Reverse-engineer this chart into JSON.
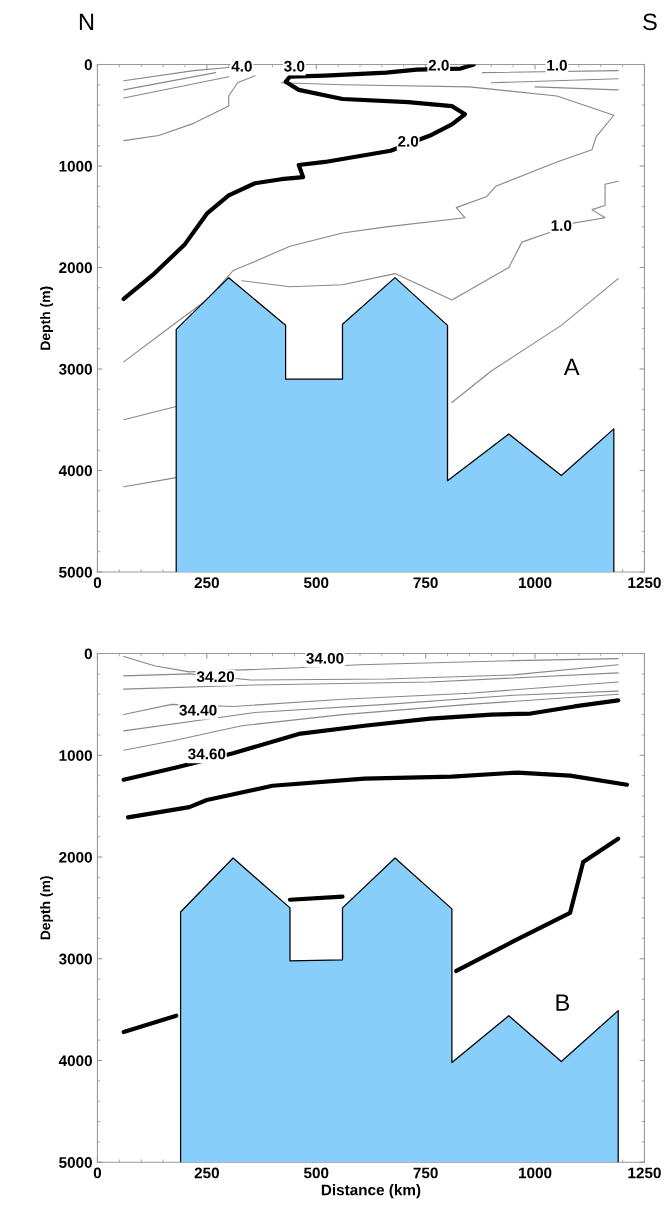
{
  "chart_data": [
    {
      "type": "line",
      "ylabel": "Depth (m)",
      "xlim": [
        0,
        1250
      ],
      "ylim": [
        5000,
        0
      ],
      "xticks": [
        0,
        250,
        500,
        750,
        1000,
        1250
      ],
      "yticks": [
        0,
        1000,
        2000,
        3000,
        4000,
        5000
      ],
      "grid": false,
      "series": [
        {
          "type": "area",
          "color": "#87cefa",
          "x": [
            180,
            180,
            300,
            430,
            430,
            560,
            560,
            680,
            800,
            800,
            940,
            1060,
            1180,
            1180
          ],
          "values": [
            5000,
            2610,
            2100,
            2570,
            3100,
            3100,
            2560,
            2100,
            2570,
            4100,
            3640,
            4050,
            3590,
            5000
          ]
        },
        {
          "color": "#000000",
          "x": [
            60,
            130,
            200,
            250,
            300,
            360,
            420,
            470,
            460,
            520,
            670,
            760,
            810,
            840,
            810,
            710,
            560,
            460,
            430,
            440,
            520,
            660,
            730,
            830,
            860
          ],
          "values": [
            2310,
            2060,
            1770,
            1470,
            1290,
            1170,
            1130,
            1110,
            990,
            960,
            850,
            700,
            590,
            490,
            410,
            370,
            340,
            250,
            170,
            120,
            110,
            80,
            50,
            40,
            0
          ]
        },
        {
          "color": "#888888",
          "x": [
            60,
            140,
            220,
            300,
            300,
            320,
            360
          ],
          "values": [
            750,
            700,
            580,
            410,
            310,
            180,
            110
          ]
        },
        {
          "color": "#888888",
          "x": [
            420,
            560,
            850,
            1050,
            1180,
            1140,
            1130,
            1050,
            910,
            890,
            820,
            840,
            660,
            560,
            440,
            360,
            310,
            250,
            190,
            60
          ],
          "values": [
            180,
            200,
            220,
            310,
            500,
            710,
            840,
            960,
            1200,
            1300,
            1410,
            1510,
            1600,
            1660,
            1790,
            1940,
            2030,
            2320,
            2510,
            2930
          ]
        },
        {
          "color": "#888888",
          "x": [
            330,
            440,
            560,
            680,
            810,
            940,
            970,
            1030,
            1090,
            1160,
            1130,
            1160,
            1160,
            1190
          ],
          "values": [
            2130,
            2190,
            2170,
            2060,
            2320,
            2000,
            1750,
            1660,
            1560,
            1510,
            1430,
            1390,
            1180,
            1150
          ]
        },
        {
          "color": "#888888",
          "x": [
            810,
            900,
            1060,
            1190
          ],
          "values": [
            3330,
            3020,
            2570,
            2110
          ]
        },
        {
          "color": "#888888",
          "x": [
            60,
            180
          ],
          "values": [
            3500,
            3370
          ]
        },
        {
          "color": "#888888",
          "x": [
            60,
            180
          ],
          "values": [
            4160,
            4070
          ]
        },
        {
          "color": "#888888",
          "x": [
            60,
            220,
            300
          ],
          "values": [
            160,
            60,
            30
          ]
        },
        {
          "color": "#888888",
          "x": [
            60,
            270
          ],
          "values": [
            250,
            80
          ]
        },
        {
          "color": "#888888",
          "x": [
            60,
            300
          ],
          "values": [
            330,
            120
          ]
        },
        {
          "color": "#888888",
          "x": [
            880,
            1190
          ],
          "values": [
            80,
            60
          ]
        },
        {
          "color": "#888888",
          "x": [
            900,
            1190
          ],
          "values": [
            180,
            140
          ]
        },
        {
          "color": "#888888",
          "x": [
            1000,
            1190
          ],
          "values": [
            220,
            250
          ]
        }
      ],
      "annotations": [
        "N",
        "S",
        "A",
        {
          "text": "4.0",
          "x": 330,
          "y": 30
        },
        {
          "text": "3.0",
          "x": 450,
          "y": 30
        },
        {
          "text": "2.0",
          "x": 780,
          "y": 20
        },
        {
          "text": "1.0",
          "x": 1050,
          "y": 20
        },
        {
          "text": "2.0",
          "x": 710,
          "y": 770
        },
        {
          "text": "1.0",
          "x": 1060,
          "y": 1600
        }
      ]
    },
    {
      "type": "line",
      "xlabel": "Distance (km)",
      "ylabel": "Depth (m)",
      "xlim": [
        0,
        1250
      ],
      "ylim": [
        5000,
        0
      ],
      "xticks": [
        0,
        250,
        500,
        750,
        1000,
        1250
      ],
      "yticks": [
        0,
        1000,
        2000,
        3000,
        4000,
        5000
      ],
      "grid": false,
      "series": [
        {
          "type": "area",
          "color": "#87cefa",
          "x": [
            190,
            190,
            310,
            440,
            440,
            560,
            560,
            680,
            810,
            810,
            940,
            1060,
            1190,
            1190
          ],
          "values": [
            5000,
            2540,
            2010,
            2500,
            3020,
            3010,
            2500,
            2010,
            2510,
            4020,
            3560,
            4010,
            3510,
            5000
          ]
        },
        {
          "color": "#000000",
          "x": [
            60,
            180,
            310,
            460,
            610,
            760,
            900,
            990,
            1090,
            1190
          ],
          "values": [
            1240,
            1120,
            980,
            790,
            710,
            640,
            600,
            590,
            520,
            460
          ]
        },
        {
          "color": "#000000",
          "x": [
            70,
            210,
            250,
            400,
            610,
            810,
            960,
            1080,
            1210
          ],
          "values": [
            1610,
            1510,
            1440,
            1300,
            1230,
            1210,
            1170,
            1200,
            1290
          ]
        },
        {
          "color": "#000000",
          "x": [
            60,
            180,
            500,
            820,
            950,
            1080,
            1110,
            1190
          ],
          "values": [
            3720,
            3560,
            null,
            3120,
            2830,
            2550,
            2050,
            1820
          ]
        },
        {
          "color": "#000000",
          "x": [
            440,
            560
          ],
          "values": [
            2420,
            2390
          ]
        },
        {
          "color": "#888888",
          "x": [
            60,
            130,
            210,
            460,
            600,
            950,
            1190
          ],
          "values": [
            30,
            120,
            180,
            140,
            110,
            70,
            50
          ]
        },
        {
          "color": "#888888",
          "x": [
            60,
            210,
            350,
            660,
            950,
            1190
          ],
          "values": [
            220,
            200,
            260,
            250,
            210,
            110
          ]
        },
        {
          "color": "#888888",
          "x": [
            60,
            360,
            760,
            1190
          ],
          "values": [
            350,
            310,
            280,
            190
          ]
        },
        {
          "color": "#888888",
          "x": [
            60,
            170,
            310,
            560,
            850,
            1190
          ],
          "values": [
            600,
            500,
            520,
            450,
            390,
            280
          ]
        },
        {
          "color": "#888888",
          "x": [
            60,
            360,
            660,
            950,
            1190
          ],
          "values": [
            760,
            580,
            500,
            410,
            370
          ]
        },
        {
          "color": "#888888",
          "x": [
            60,
            170,
            330,
            560,
            850,
            1190
          ],
          "values": [
            950,
            860,
            710,
            600,
            500,
            400
          ]
        }
      ],
      "annotations": [
        "B",
        {
          "text": "34.00",
          "x": 520,
          "y": 60
        },
        {
          "text": "34.20",
          "x": 270,
          "y": 240
        },
        {
          "text": "34.40",
          "x": 230,
          "y": 570
        },
        {
          "text": "34.60",
          "x": 250,
          "y": 1000
        }
      ]
    }
  ]
}
